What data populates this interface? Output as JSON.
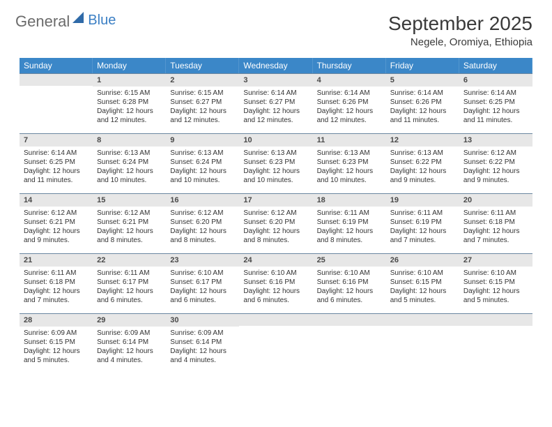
{
  "logo": {
    "general": "General",
    "blue": "Blue",
    "sail_color": "#2f6aa8"
  },
  "title": {
    "month": "September 2025",
    "location": "Negele, Oromiya, Ethiopia"
  },
  "colors": {
    "header_bg": "#3b87c8",
    "header_text": "#ffffff",
    "daynum_bg": "#e7e7e7",
    "daynum_border": "#6a86a0",
    "text": "#333333"
  },
  "weekdays": [
    "Sunday",
    "Monday",
    "Tuesday",
    "Wednesday",
    "Thursday",
    "Friday",
    "Saturday"
  ],
  "weeks": [
    [
      null,
      {
        "num": "1",
        "sunrise": "Sunrise: 6:15 AM",
        "sunset": "Sunset: 6:28 PM",
        "daylight": "Daylight: 12 hours and 12 minutes."
      },
      {
        "num": "2",
        "sunrise": "Sunrise: 6:15 AM",
        "sunset": "Sunset: 6:27 PM",
        "daylight": "Daylight: 12 hours and 12 minutes."
      },
      {
        "num": "3",
        "sunrise": "Sunrise: 6:14 AM",
        "sunset": "Sunset: 6:27 PM",
        "daylight": "Daylight: 12 hours and 12 minutes."
      },
      {
        "num": "4",
        "sunrise": "Sunrise: 6:14 AM",
        "sunset": "Sunset: 6:26 PM",
        "daylight": "Daylight: 12 hours and 12 minutes."
      },
      {
        "num": "5",
        "sunrise": "Sunrise: 6:14 AM",
        "sunset": "Sunset: 6:26 PM",
        "daylight": "Daylight: 12 hours and 11 minutes."
      },
      {
        "num": "6",
        "sunrise": "Sunrise: 6:14 AM",
        "sunset": "Sunset: 6:25 PM",
        "daylight": "Daylight: 12 hours and 11 minutes."
      }
    ],
    [
      {
        "num": "7",
        "sunrise": "Sunrise: 6:14 AM",
        "sunset": "Sunset: 6:25 PM",
        "daylight": "Daylight: 12 hours and 11 minutes."
      },
      {
        "num": "8",
        "sunrise": "Sunrise: 6:13 AM",
        "sunset": "Sunset: 6:24 PM",
        "daylight": "Daylight: 12 hours and 10 minutes."
      },
      {
        "num": "9",
        "sunrise": "Sunrise: 6:13 AM",
        "sunset": "Sunset: 6:24 PM",
        "daylight": "Daylight: 12 hours and 10 minutes."
      },
      {
        "num": "10",
        "sunrise": "Sunrise: 6:13 AM",
        "sunset": "Sunset: 6:23 PM",
        "daylight": "Daylight: 12 hours and 10 minutes."
      },
      {
        "num": "11",
        "sunrise": "Sunrise: 6:13 AM",
        "sunset": "Sunset: 6:23 PM",
        "daylight": "Daylight: 12 hours and 10 minutes."
      },
      {
        "num": "12",
        "sunrise": "Sunrise: 6:13 AM",
        "sunset": "Sunset: 6:22 PM",
        "daylight": "Daylight: 12 hours and 9 minutes."
      },
      {
        "num": "13",
        "sunrise": "Sunrise: 6:12 AM",
        "sunset": "Sunset: 6:22 PM",
        "daylight": "Daylight: 12 hours and 9 minutes."
      }
    ],
    [
      {
        "num": "14",
        "sunrise": "Sunrise: 6:12 AM",
        "sunset": "Sunset: 6:21 PM",
        "daylight": "Daylight: 12 hours and 9 minutes."
      },
      {
        "num": "15",
        "sunrise": "Sunrise: 6:12 AM",
        "sunset": "Sunset: 6:21 PM",
        "daylight": "Daylight: 12 hours and 8 minutes."
      },
      {
        "num": "16",
        "sunrise": "Sunrise: 6:12 AM",
        "sunset": "Sunset: 6:20 PM",
        "daylight": "Daylight: 12 hours and 8 minutes."
      },
      {
        "num": "17",
        "sunrise": "Sunrise: 6:12 AM",
        "sunset": "Sunset: 6:20 PM",
        "daylight": "Daylight: 12 hours and 8 minutes."
      },
      {
        "num": "18",
        "sunrise": "Sunrise: 6:11 AM",
        "sunset": "Sunset: 6:19 PM",
        "daylight": "Daylight: 12 hours and 8 minutes."
      },
      {
        "num": "19",
        "sunrise": "Sunrise: 6:11 AM",
        "sunset": "Sunset: 6:19 PM",
        "daylight": "Daylight: 12 hours and 7 minutes."
      },
      {
        "num": "20",
        "sunrise": "Sunrise: 6:11 AM",
        "sunset": "Sunset: 6:18 PM",
        "daylight": "Daylight: 12 hours and 7 minutes."
      }
    ],
    [
      {
        "num": "21",
        "sunrise": "Sunrise: 6:11 AM",
        "sunset": "Sunset: 6:18 PM",
        "daylight": "Daylight: 12 hours and 7 minutes."
      },
      {
        "num": "22",
        "sunrise": "Sunrise: 6:11 AM",
        "sunset": "Sunset: 6:17 PM",
        "daylight": "Daylight: 12 hours and 6 minutes."
      },
      {
        "num": "23",
        "sunrise": "Sunrise: 6:10 AM",
        "sunset": "Sunset: 6:17 PM",
        "daylight": "Daylight: 12 hours and 6 minutes."
      },
      {
        "num": "24",
        "sunrise": "Sunrise: 6:10 AM",
        "sunset": "Sunset: 6:16 PM",
        "daylight": "Daylight: 12 hours and 6 minutes."
      },
      {
        "num": "25",
        "sunrise": "Sunrise: 6:10 AM",
        "sunset": "Sunset: 6:16 PM",
        "daylight": "Daylight: 12 hours and 6 minutes."
      },
      {
        "num": "26",
        "sunrise": "Sunrise: 6:10 AM",
        "sunset": "Sunset: 6:15 PM",
        "daylight": "Daylight: 12 hours and 5 minutes."
      },
      {
        "num": "27",
        "sunrise": "Sunrise: 6:10 AM",
        "sunset": "Sunset: 6:15 PM",
        "daylight": "Daylight: 12 hours and 5 minutes."
      }
    ],
    [
      {
        "num": "28",
        "sunrise": "Sunrise: 6:09 AM",
        "sunset": "Sunset: 6:15 PM",
        "daylight": "Daylight: 12 hours and 5 minutes."
      },
      {
        "num": "29",
        "sunrise": "Sunrise: 6:09 AM",
        "sunset": "Sunset: 6:14 PM",
        "daylight": "Daylight: 12 hours and 4 minutes."
      },
      {
        "num": "30",
        "sunrise": "Sunrise: 6:09 AM",
        "sunset": "Sunset: 6:14 PM",
        "daylight": "Daylight: 12 hours and 4 minutes."
      },
      null,
      null,
      null,
      null
    ]
  ]
}
